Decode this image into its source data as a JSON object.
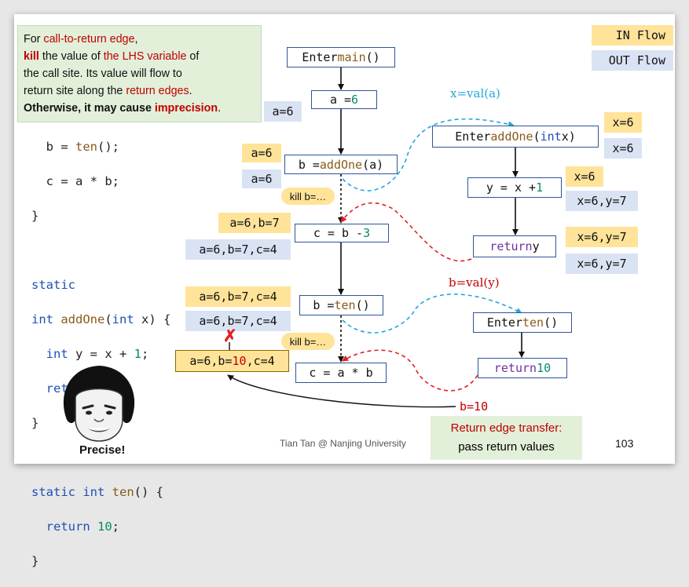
{
  "note": {
    "line1_a": "For ",
    "line1_b": "call-to-return edge",
    "line1_c": ",",
    "line2_a": "kill",
    "line2_b": " the value of ",
    "line2_c": "the LHS variable",
    "line2_d": " of",
    "line3": "the call site. Its value will flow to",
    "line4_a": "return site along the ",
    "line4_b": "return edges",
    "line4_c": ".",
    "line5_a": "Otherwise, it may cause ",
    "line5_b": "imprecision",
    "line5_c": "."
  },
  "legend": {
    "in_flow": "IN Flow",
    "out_flow": "OUT Flow"
  },
  "code": {
    "l1_a": "  b = ",
    "l1_fn": "ten",
    "l1_b": "();",
    "l2": "  c = a * b;",
    "l3": "}",
    "l4": "static",
    "l5_kw1": "int",
    "l5_fn": " addOne",
    "l5_a": "(",
    "l5_kw2": "int",
    "l5_b": " x) {",
    "l6_kw": "  int",
    "l6_a": " y = x + ",
    "l6_num": "1",
    "l6_b": ";",
    "l7_kw": "  return",
    "l7_a": " y;",
    "l8": "}",
    "l9_kw": "static int",
    "l9_fn": " ten",
    "l9_a": "() {",
    "l10_kw": "  return",
    "l10_num": " 10",
    "l10_a": ";",
    "l11": "}"
  },
  "main_nodes": {
    "enter_main_a": "Enter ",
    "enter_main_fn": "main",
    "enter_main_b": "()",
    "a6_a": "a = ",
    "a6_num": "6",
    "baddone_a": "b = ",
    "baddone_fn": "addOne",
    "baddone_b": "(a)",
    "cb3_a": "c = b - ",
    "cb3_num": "3",
    "bten_a": "b = ",
    "bten_fn": "ten",
    "bten_b": "()",
    "cab": "c = a * b"
  },
  "addone_nodes": {
    "enter_a": "Enter ",
    "enter_fn": "addOne",
    "enter_b": "(",
    "enter_kw": "int",
    "enter_c": " x)",
    "y_a": "y = x + ",
    "y_num": "1",
    "ret_kw": "return",
    "ret_a": " y"
  },
  "ten_nodes": {
    "enter_a": "Enter ",
    "enter_fn": "ten",
    "enter_b": "()",
    "ret_kw": "return",
    "ret_num": " 10"
  },
  "facts": {
    "out_a6": "a=6",
    "in_baddone": "a=6",
    "out_baddone": "a=6",
    "in_cb3": "a=6,b=7",
    "out_cb3": "a=6,b=7,c=4",
    "in_bten": "a=6,b=7,c=4",
    "out_bten": "a=6,b=7,c=4",
    "in_cab_a": "a=6,b=",
    "in_cab_b": "10",
    "in_cab_c": ",c=4",
    "in_enter_addone": "x=6",
    "out_enter_addone": "x=6",
    "in_y": "x=6",
    "out_y": "x=6,y=7",
    "in_ret_y": "x=6,y=7",
    "out_ret_y": "x=6,y=7"
  },
  "kill_labels": {
    "k1": "kill b=…",
    "k2": "kill b=…"
  },
  "edge_labels": {
    "xval": "x=val(a)",
    "bval": "b=val(y)",
    "b10": "b=10"
  },
  "cross_mark": "✗",
  "transfer": {
    "line1": "Return edge transfer:",
    "line2": "pass return values"
  },
  "footer": {
    "credit": "Tian Tan @ Nanjing University",
    "page": "103"
  },
  "precise_label": "Precise!",
  "colors": {
    "red": "#c00000",
    "blue_dash": "#22a6dc",
    "node_border": "#2e5597",
    "in_fact": "#ffe399",
    "out_fact": "#dae3f3",
    "note_bg": "#e2efd9"
  }
}
